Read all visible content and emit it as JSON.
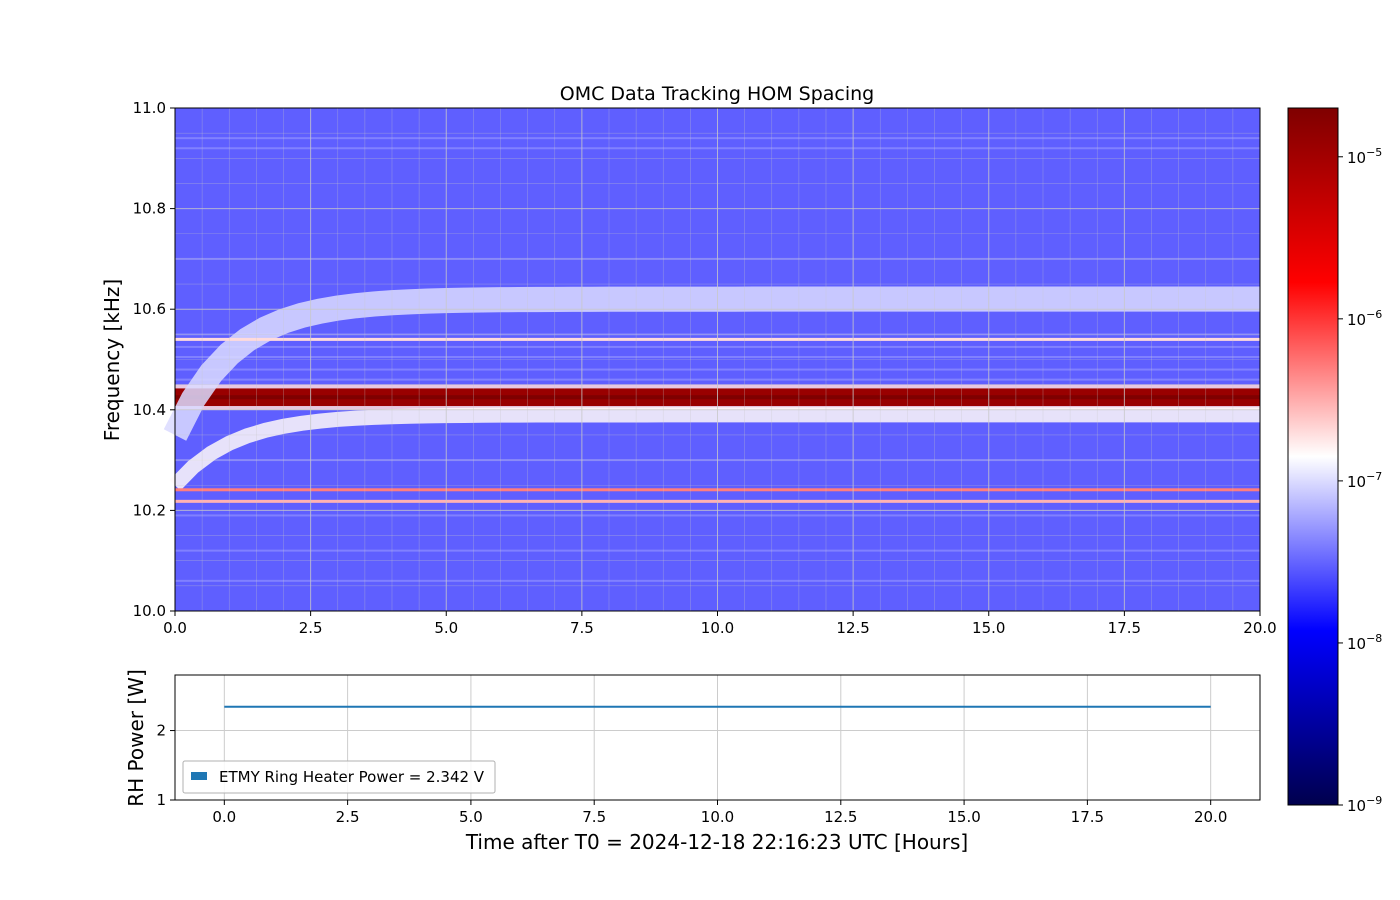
{
  "chart_data": [
    {
      "type": "heatmap",
      "title": "OMC Data Tracking HOM Spacing",
      "xlabel": "",
      "ylabel": "Frequency [kHz]",
      "xlim": [
        0.0,
        20.0
      ],
      "ylim": [
        10.0,
        11.0
      ],
      "xticks": [
        "0.0",
        "2.5",
        "5.0",
        "7.5",
        "10.0",
        "12.5",
        "15.0",
        "17.5",
        "20.0"
      ],
      "yticks": [
        "10.0",
        "10.2",
        "10.4",
        "10.6",
        "10.8",
        "11.0"
      ],
      "grid": true,
      "colorscale": "seismic",
      "color_range": [
        1e-09,
        2e-05
      ],
      "colorbar_scale": "log",
      "colorbar_ticks": [
        {
          "base": "10",
          "exp": "−5",
          "value": 1e-05
        },
        {
          "base": "10",
          "exp": "−6",
          "value": 1e-06
        },
        {
          "base": "10",
          "exp": "−7",
          "value": 1e-07
        },
        {
          "base": "10",
          "exp": "−8",
          "value": 1e-08
        },
        {
          "base": "10",
          "exp": "−9",
          "value": 1e-09
        }
      ],
      "features": [
        {
          "kind": "band",
          "y": 10.425,
          "width": 0.035,
          "level": "max"
        },
        {
          "kind": "band",
          "y": 10.62,
          "width": 0.05,
          "level": "1e-7",
          "rises_from": 10.35
        },
        {
          "kind": "band",
          "y": 10.39,
          "width": 0.03,
          "level": "1.5e-7",
          "rises_from": 10.25
        },
        {
          "kind": "line",
          "y": 10.241,
          "level": "5e-7"
        },
        {
          "kind": "line",
          "y": 10.218,
          "level": "3e-7"
        },
        {
          "kind": "line",
          "y": 10.54,
          "level": "2e-7"
        }
      ],
      "background_level": "3e-8"
    },
    {
      "type": "line",
      "xlabel": "Time after T0 = 2024-12-18 22:16:23 UTC [Hours]",
      "ylabel": "RH Power [W]",
      "xlim": [
        -1.0,
        21.0
      ],
      "ylim": [
        1.0,
        2.8
      ],
      "xticks": [
        "0.0",
        "2.5",
        "5.0",
        "7.5",
        "10.0",
        "12.5",
        "15.0",
        "17.5",
        "20.0"
      ],
      "yticks": [
        "1",
        "2"
      ],
      "grid": true,
      "legend_position": "lower-left",
      "series": [
        {
          "name": "ETMY Ring Heater Power = 2.342 V",
          "color": "#1f77b4",
          "x": [
            0.0,
            20.0
          ],
          "y": [
            2.342,
            2.342
          ]
        }
      ]
    }
  ]
}
